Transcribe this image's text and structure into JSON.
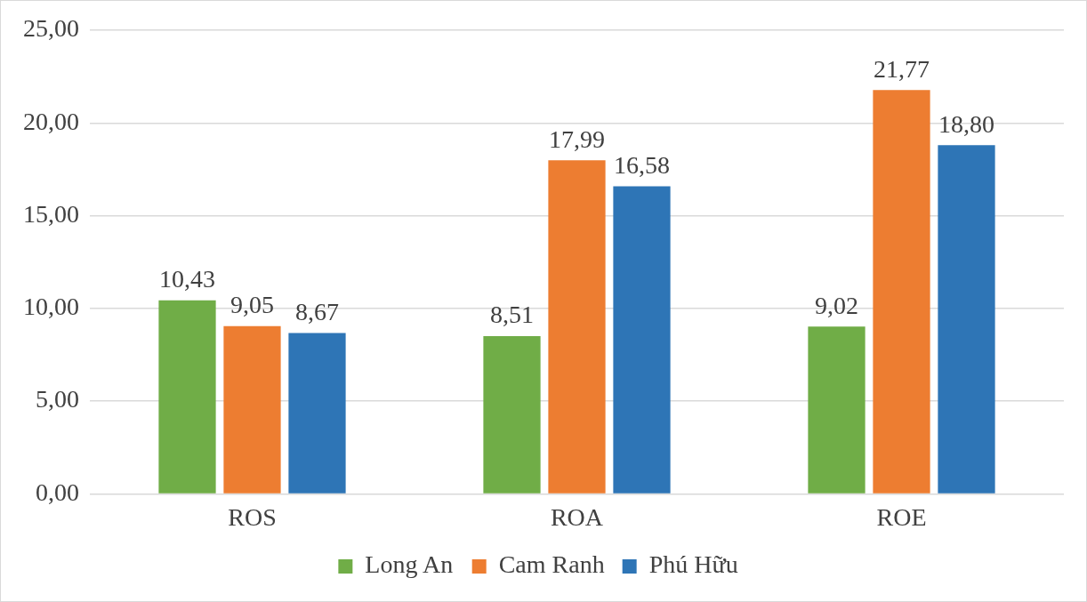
{
  "chart_data": {
    "type": "bar",
    "categories": [
      "ROS",
      "ROA",
      "ROE"
    ],
    "series": [
      {
        "name": "Long An",
        "color": "#70ad47",
        "values": [
          10.43,
          8.51,
          9.02
        ],
        "value_labels": [
          "10,43",
          "8,51",
          "9,02"
        ]
      },
      {
        "name": "Cam Ranh",
        "color": "#ed7d31",
        "values": [
          9.05,
          17.99,
          21.77
        ],
        "value_labels": [
          "9,05",
          "17,99",
          "21,77"
        ]
      },
      {
        "name": "Phú Hữu",
        "color": "#2e75b6",
        "values": [
          8.67,
          16.58,
          18.8
        ],
        "value_labels": [
          "8,67",
          "16,58",
          "18,80"
        ]
      }
    ],
    "ylim": [
      0,
      25
    ],
    "yticks": [
      {
        "value": 0,
        "label": "0,00"
      },
      {
        "value": 5,
        "label": "5,00"
      },
      {
        "value": 10,
        "label": "10,00"
      },
      {
        "value": 15,
        "label": "15,00"
      },
      {
        "value": 20,
        "label": "20,00"
      },
      {
        "value": 25,
        "label": "25,00"
      }
    ],
    "grid": "y",
    "legend": "bottom"
  }
}
